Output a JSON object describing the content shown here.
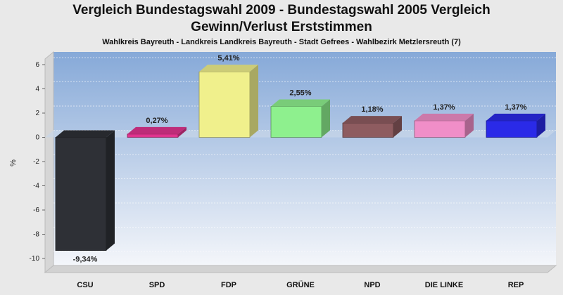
{
  "chart_data": {
    "type": "bar",
    "title": "Vergleich Bundestagswahl 2009 - Bundestagswahl 2005 Vergleich",
    "title_line2": "Gewinn/Verlust Erststimmen",
    "subtitle": "Wahlkreis Bayreuth - Landkreis Landkreis Bayreuth - Stadt Gefrees - Wahlbezirk Metzlersreuth (7)",
    "ylabel": "%",
    "xlabel": "",
    "ylim": [
      -10,
      7
    ],
    "yticks": [
      6,
      4,
      2,
      0,
      -2,
      -4,
      -6,
      -8,
      -10
    ],
    "categories": [
      "CSU",
      "SPD",
      "FDP",
      "GRÜNE",
      "NPD",
      "DIE LINKE",
      "REP"
    ],
    "values": [
      -9.34,
      0.27,
      5.41,
      2.55,
      1.18,
      1.37,
      1.37
    ],
    "value_labels": [
      "-9,34%",
      "0,27%",
      "5,41%",
      "2,55%",
      "1,18%",
      "1,37%",
      "1,37%"
    ],
    "colors": [
      "#2e3036",
      "#e0348e",
      "#f0f08c",
      "#8ef08e",
      "#8e5c60",
      "#f08ec8",
      "#2a2ae8"
    ],
    "grid": true,
    "legend": "none"
  }
}
